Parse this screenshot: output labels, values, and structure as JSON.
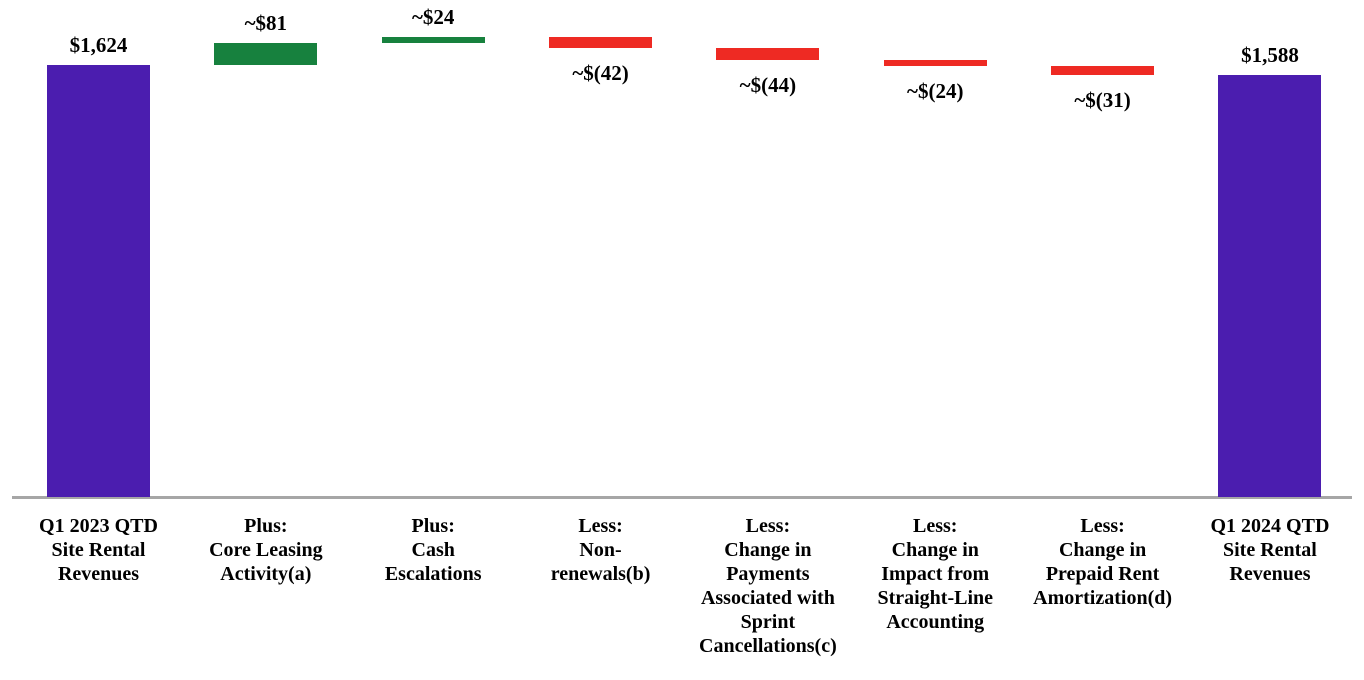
{
  "chart_data": {
    "type": "bar",
    "subtype": "waterfall",
    "title": "",
    "xlabel": "",
    "ylabel": "",
    "ylim": [
      0,
      1868
    ],
    "grid": false,
    "legend": false,
    "units": "USD millions",
    "colors": {
      "total": "#4b1daf",
      "increase": "#17813e",
      "decrease": "#ee2a23",
      "axis_line": "#a6a6a6",
      "text": "#000000"
    },
    "bars": [
      {
        "kind": "total",
        "value": 1624,
        "display_value": "$1,624",
        "label_lines": [
          "Q1 2023 QTD",
          "Site Rental",
          "Revenues"
        ]
      },
      {
        "kind": "increase",
        "value": 81,
        "display_value": "~$81",
        "label_lines": [
          "Plus:",
          "Core Leasing",
          "Activity(a)"
        ]
      },
      {
        "kind": "increase",
        "value": 24,
        "display_value": "~$24",
        "label_lines": [
          "Plus:",
          "Cash",
          "Escalations"
        ]
      },
      {
        "kind": "decrease",
        "value": -42,
        "display_value": "~$(42)",
        "label_lines": [
          "Less:",
          "Non-",
          "renewals(b)"
        ]
      },
      {
        "kind": "decrease",
        "value": -44,
        "display_value": "~$(44)",
        "label_lines": [
          "Less:",
          "Change in",
          "Payments",
          "Associated with",
          "Sprint",
          "Cancellations(c)"
        ]
      },
      {
        "kind": "decrease",
        "value": -24,
        "display_value": "~$(24)",
        "label_lines": [
          "Less:",
          "Change in",
          "Impact from",
          "Straight-Line",
          "Accounting"
        ]
      },
      {
        "kind": "decrease",
        "value": -31,
        "display_value": "~$(31)",
        "label_lines": [
          "Less:",
          "Change in",
          "Prepaid Rent",
          "Amortization(d)"
        ]
      },
      {
        "kind": "total",
        "value": 1588,
        "display_value": "$1,588",
        "label_lines": [
          "Q1 2024 QTD",
          "Site Rental",
          "Revenues"
        ]
      }
    ]
  }
}
